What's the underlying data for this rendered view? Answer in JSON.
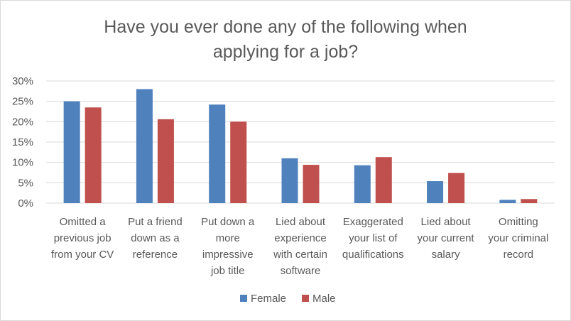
{
  "chart_data": {
    "type": "bar",
    "title_lines": [
      "Have you ever done any of the following when",
      "applying for a job?"
    ],
    "categories": [
      [
        "Omitted a",
        "previous job",
        "from your CV"
      ],
      [
        "Put a friend",
        "down as a",
        "reference"
      ],
      [
        "Put down a",
        "more",
        "impressive",
        "job title"
      ],
      [
        "Lied about",
        "experience",
        "with certain",
        "software"
      ],
      [
        "Exaggerated",
        "your list of",
        "qualifications"
      ],
      [
        "Lied about",
        "your current",
        "salary"
      ],
      [
        "Omitting",
        "your criminal",
        "record"
      ]
    ],
    "series": [
      {
        "name": "Female",
        "color": "#4f81bd",
        "values": [
          25,
          28,
          24.2,
          11,
          9.3,
          5.4,
          0.8
        ]
      },
      {
        "name": "Male",
        "color": "#c0504d",
        "values": [
          23.5,
          20.6,
          20,
          9.4,
          11.3,
          7.4,
          1
        ]
      }
    ],
    "ylim": [
      0,
      30
    ],
    "yticks": [
      "0%",
      "5%",
      "10%",
      "15%",
      "20%",
      "25%",
      "30%"
    ],
    "ytick_values": [
      0,
      5,
      10,
      15,
      20,
      25,
      30
    ],
    "grid": true,
    "legend_position": "bottom"
  }
}
